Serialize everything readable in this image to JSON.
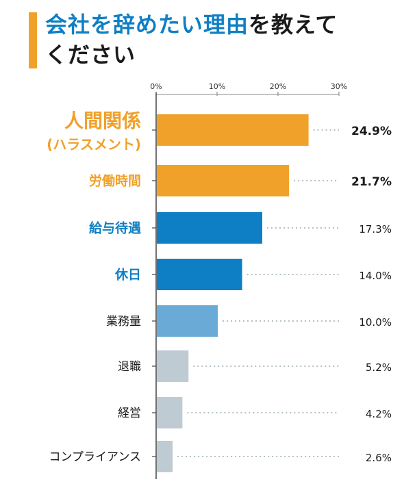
{
  "title": {
    "highlight": "会社を辞めたい理由",
    "rest_line1": "を教えて",
    "line2": "ください"
  },
  "colors": {
    "accent_bar": "#f0a12a",
    "title_highlight": "#0e7fc4",
    "orange": "#f0a12a",
    "blue": "#0e7fc4",
    "light_blue": "#6aaad6",
    "gray": "#bfcbd3"
  },
  "chart_data": {
    "type": "bar",
    "orientation": "horizontal",
    "categories": [
      "人間関係\n(ハラスメント)",
      "労働時間",
      "給与待遇",
      "休日",
      "業務量",
      "退職",
      "経営",
      "コンプライアンス"
    ],
    "values": [
      24.9,
      21.7,
      17.3,
      14.0,
      10.0,
      5.2,
      4.2,
      2.6
    ],
    "value_labels": [
      "24.9%",
      "21.7%",
      "17.3%",
      "14.0%",
      "10.0%",
      "5.2%",
      "4.2%",
      "2.6%"
    ],
    "tick_values": [
      0,
      10,
      20,
      30
    ],
    "tick_labels": [
      "0%",
      "10%",
      "20%",
      "30%"
    ],
    "xlim": [
      0,
      30
    ],
    "bar_color_groups": [
      "orange",
      "orange",
      "blue",
      "blue",
      "light_blue",
      "gray",
      "gray",
      "gray"
    ],
    "grid": false
  }
}
